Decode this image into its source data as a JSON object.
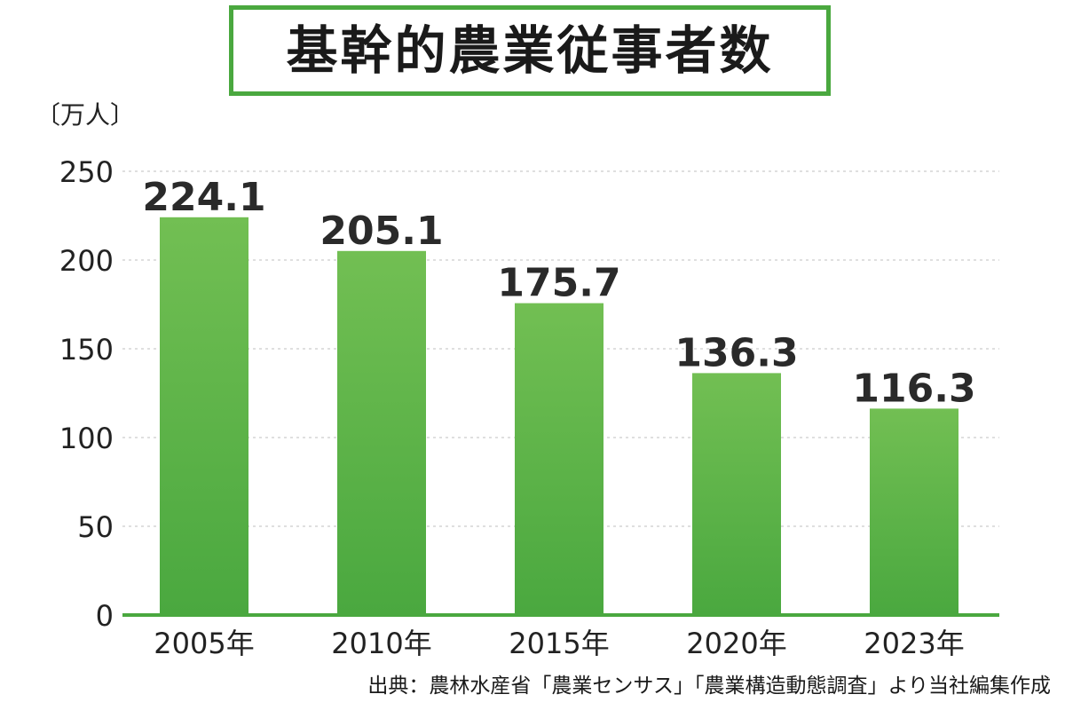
{
  "title": "基幹的農業従事者数",
  "unit_label": "〔万人〕",
  "source_note": "出典：農林水産省「農業センサス」「農業構造動態調査」より当社編集作成",
  "colors": {
    "bar_top": "#72bf53",
    "bar_bottom": "#4aa83f",
    "axis": "#4aa83f",
    "grid": "#cccccc",
    "title_border": "#4aa83f"
  },
  "chart_data": {
    "type": "bar",
    "categories": [
      "2005年",
      "2010年",
      "2015年",
      "2020年",
      "2023年"
    ],
    "values": [
      224.1,
      205.1,
      175.7,
      136.3,
      116.3
    ],
    "value_labels": [
      "224.1",
      "205.1",
      "175.7",
      "136.3",
      "116.3"
    ],
    "ylim": [
      0,
      250
    ],
    "yticks": [
      0,
      50,
      100,
      150,
      200,
      250
    ],
    "ylabel": "〔万人〕",
    "grid": true,
    "grid_style": "dashed",
    "legend": "none"
  }
}
